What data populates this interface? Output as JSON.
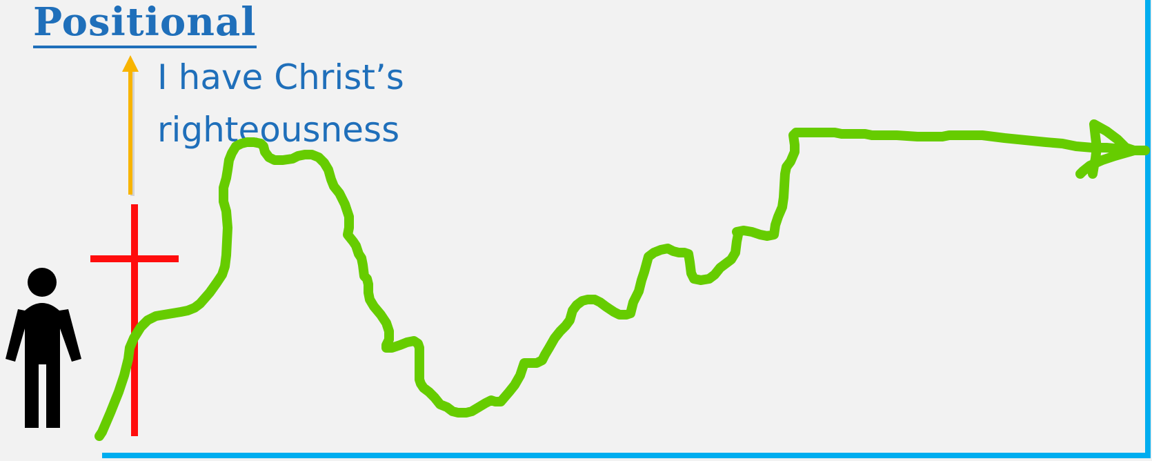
{
  "title": "Positional",
  "statement": {
    "line1": "I have Christ’s",
    "line2": "righteousness"
  },
  "icons": {
    "person": "person-icon",
    "cross": "cross-icon",
    "up_arrow": "up-arrow-icon",
    "journey_arrowhead": "arrowhead-icon"
  },
  "colors": {
    "title": "#1f6fba",
    "statement": "#1f6fba",
    "cross": "#ff0d0d",
    "up_arrow": "#f8b400",
    "journey_line": "#66cc00",
    "frame": "#00adef",
    "person": "#000000",
    "background": "#f2f2f2"
  }
}
